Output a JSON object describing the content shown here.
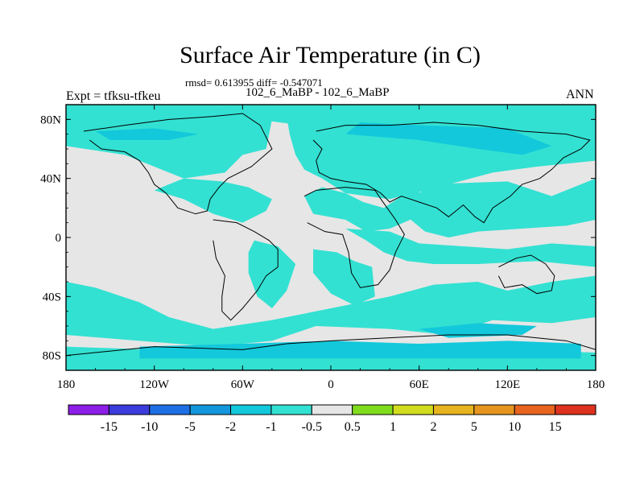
{
  "chart_data": {
    "type": "heatmap",
    "title": "Surface Air Temperature (in C)",
    "stats_line": "rmsd= 0.613955 diff= -0.547071",
    "cases_line": "102_6_MaBP - 102_6_MaBP",
    "left_label": "Expt = tfksu-tfkeu",
    "right_label": "ANN",
    "xlim": [
      -180,
      180
    ],
    "ylim": [
      -90,
      90
    ],
    "x_ticks": [
      {
        "value": -180,
        "label": "180"
      },
      {
        "value": -120,
        "label": "120W"
      },
      {
        "value": -60,
        "label": "60W"
      },
      {
        "value": 0,
        "label": "0"
      },
      {
        "value": 60,
        "label": "60E"
      },
      {
        "value": 120,
        "label": "120E"
      },
      {
        "value": 180,
        "label": "180"
      }
    ],
    "y_ticks": [
      {
        "value": 80,
        "label": "80N"
      },
      {
        "value": 40,
        "label": "40N"
      },
      {
        "value": 0,
        "label": "0"
      },
      {
        "value": -40,
        "label": "40S"
      },
      {
        "value": -80,
        "label": "80S"
      }
    ],
    "colorbar": {
      "colors": [
        "#8c1ee6",
        "#3c3cdc",
        "#1e6ee6",
        "#1496dc",
        "#14c8dc",
        "#32e1d2",
        "#e6e6e6",
        "#82dc1e",
        "#d2dc1e",
        "#e6b41e",
        "#e6961e",
        "#e6641e",
        "#dc321e"
      ],
      "labels": [
        "-15",
        "-10",
        "-5",
        "-2",
        "-1",
        "-0.5",
        "0.5",
        "1",
        "2",
        "5",
        "10",
        "15"
      ]
    },
    "fields": {
      "background_color": "#e6e6e6",
      "level_minus1_color": "#32e1d2",
      "level_minus2_color": "#14c8dc"
    },
    "regions": [
      {
        "level": -1,
        "points": [
          [
            -180,
            90
          ],
          [
            180,
            90
          ],
          [
            180,
            68
          ],
          [
            130,
            70
          ],
          [
            110,
            76
          ],
          [
            40,
            80
          ],
          [
            -20,
            76
          ],
          [
            -80,
            84
          ],
          [
            -120,
            72
          ],
          [
            -160,
            80
          ],
          [
            -180,
            78
          ]
        ]
      },
      {
        "level": -1,
        "points": [
          [
            -180,
            62
          ],
          [
            -140,
            56
          ],
          [
            -120,
            48
          ],
          [
            -100,
            40
          ],
          [
            -72,
            44
          ],
          [
            -60,
            56
          ],
          [
            -44,
            60
          ],
          [
            -40,
            80
          ],
          [
            -60,
            86
          ],
          [
            -120,
            84
          ],
          [
            -180,
            84
          ]
        ]
      },
      {
        "level": -1,
        "points": [
          [
            -30,
            82
          ],
          [
            -10,
            88
          ],
          [
            20,
            86
          ],
          [
            60,
            84
          ],
          [
            100,
            80
          ],
          [
            140,
            84
          ],
          [
            180,
            82
          ],
          [
            180,
            52
          ],
          [
            140,
            48
          ],
          [
            110,
            44
          ],
          [
            80,
            36
          ],
          [
            40,
            26
          ],
          [
            10,
            30
          ],
          [
            -6,
            40
          ],
          [
            -18,
            46
          ],
          [
            -24,
            56
          ],
          [
            -28,
            70
          ]
        ]
      },
      {
        "level": -1,
        "points": [
          [
            -120,
            32
          ],
          [
            -100,
            26
          ],
          [
            -80,
            16
          ],
          [
            -60,
            10
          ],
          [
            -44,
            18
          ],
          [
            -40,
            26
          ],
          [
            -56,
            34
          ],
          [
            -74,
            38
          ],
          [
            -100,
            40
          ]
        ]
      },
      {
        "level": -1,
        "points": [
          [
            -18,
            28
          ],
          [
            -6,
            34
          ],
          [
            10,
            30
          ],
          [
            22,
            24
          ],
          [
            36,
            20
          ],
          [
            48,
            28
          ],
          [
            60,
            32
          ],
          [
            64,
            22
          ],
          [
            54,
            12
          ],
          [
            40,
            6
          ],
          [
            24,
            4
          ],
          [
            10,
            12
          ],
          [
            -12,
            16
          ]
        ]
      },
      {
        "level": -1,
        "points": [
          [
            64,
            36
          ],
          [
            120,
            38
          ],
          [
            150,
            28
          ],
          [
            180,
            40
          ],
          [
            180,
            12
          ],
          [
            160,
            8
          ],
          [
            130,
            6
          ],
          [
            100,
            4
          ],
          [
            80,
            0
          ],
          [
            64,
            4
          ],
          [
            52,
            14
          ]
        ]
      },
      {
        "level": -1,
        "points": [
          [
            10,
            6
          ],
          [
            24,
            -2
          ],
          [
            36,
            -10
          ],
          [
            52,
            -16
          ],
          [
            70,
            -18
          ],
          [
            100,
            -18
          ],
          [
            140,
            -16
          ],
          [
            180,
            -20
          ],
          [
            180,
            -6
          ],
          [
            150,
            -4
          ],
          [
            120,
            -8
          ],
          [
            90,
            -6
          ],
          [
            60,
            -4
          ],
          [
            40,
            4
          ]
        ]
      },
      {
        "level": -1,
        "points": [
          [
            -180,
            -30
          ],
          [
            -160,
            -34
          ],
          [
            -130,
            -44
          ],
          [
            -110,
            -54
          ],
          [
            -80,
            -62
          ],
          [
            -40,
            -56
          ],
          [
            -10,
            -50
          ],
          [
            40,
            -40
          ],
          [
            70,
            -32
          ],
          [
            100,
            -30
          ],
          [
            120,
            -36
          ],
          [
            150,
            -30
          ],
          [
            180,
            -26
          ],
          [
            180,
            -54
          ],
          [
            150,
            -58
          ],
          [
            110,
            -56
          ],
          [
            80,
            -66
          ],
          [
            40,
            -62
          ],
          [
            -10,
            -60
          ],
          [
            -40,
            -70
          ],
          [
            -80,
            -74
          ],
          [
            -130,
            -70
          ],
          [
            -180,
            -66
          ]
        ]
      },
      {
        "level": -1,
        "points": [
          [
            -180,
            -74
          ],
          [
            -120,
            -76
          ],
          [
            -60,
            -80
          ],
          [
            0,
            -76
          ],
          [
            60,
            -80
          ],
          [
            120,
            -76
          ],
          [
            180,
            -78
          ],
          [
            180,
            -90
          ],
          [
            -180,
            -90
          ]
        ]
      },
      {
        "level": -1,
        "points": [
          [
            -52,
            -2
          ],
          [
            -36,
            -6
          ],
          [
            -24,
            -18
          ],
          [
            -30,
            -36
          ],
          [
            -40,
            -48
          ],
          [
            -50,
            -40
          ],
          [
            -56,
            -24
          ],
          [
            -56,
            -10
          ]
        ]
      },
      {
        "level": -1,
        "points": [
          [
            -12,
            -8
          ],
          [
            4,
            -10
          ],
          [
            16,
            -16
          ],
          [
            28,
            -20
          ],
          [
            30,
            -40
          ],
          [
            16,
            -46
          ],
          [
            0,
            -38
          ],
          [
            -12,
            -24
          ]
        ]
      },
      {
        "level": -1,
        "points": [
          [
            -178,
            -48
          ],
          [
            -160,
            -46
          ],
          [
            -150,
            -52
          ],
          [
            -170,
            -56
          ],
          [
            -180,
            -54
          ]
        ]
      },
      {
        "level": -2,
        "points": [
          [
            10,
            70
          ],
          [
            60,
            66
          ],
          [
            100,
            60
          ],
          [
            130,
            56
          ],
          [
            150,
            62
          ],
          [
            120,
            74
          ],
          [
            60,
            76
          ],
          [
            20,
            78
          ]
        ]
      },
      {
        "level": -2,
        "points": [
          [
            -160,
            72
          ],
          [
            -120,
            74
          ],
          [
            -90,
            70
          ],
          [
            -110,
            66
          ],
          [
            -150,
            66
          ]
        ]
      },
      {
        "level": -2,
        "points": [
          [
            -130,
            -74
          ],
          [
            -60,
            -72
          ],
          [
            0,
            -70
          ],
          [
            60,
            -72
          ],
          [
            120,
            -70
          ],
          [
            170,
            -72
          ],
          [
            170,
            -82
          ],
          [
            -130,
            -82
          ]
        ]
      },
      {
        "level": -2,
        "points": [
          [
            60,
            -62
          ],
          [
            100,
            -58
          ],
          [
            140,
            -60
          ],
          [
            130,
            -66
          ],
          [
            80,
            -68
          ]
        ]
      }
    ],
    "land_outlines": [
      [
        [
          -168,
          72
        ],
        [
          -140,
          76
        ],
        [
          -110,
          80
        ],
        [
          -80,
          82
        ],
        [
          -60,
          84
        ],
        [
          -48,
          76
        ],
        [
          -40,
          60
        ],
        [
          -54,
          48
        ],
        [
          -62,
          44
        ],
        [
          -70,
          40
        ],
        [
          -76,
          34
        ],
        [
          -82,
          26
        ],
        [
          -84,
          18
        ],
        [
          -92,
          16
        ],
        [
          -104,
          20
        ],
        [
          -112,
          30
        ],
        [
          -120,
          36
        ],
        [
          -124,
          44
        ],
        [
          -130,
          52
        ],
        [
          -140,
          58
        ],
        [
          -156,
          60
        ],
        [
          -164,
          66
        ]
      ],
      [
        [
          -80,
          12
        ],
        [
          -64,
          10
        ],
        [
          -52,
          4
        ],
        [
          -42,
          -2
        ],
        [
          -36,
          -8
        ],
        [
          -36,
          -20
        ],
        [
          -44,
          -26
        ],
        [
          -50,
          -36
        ],
        [
          -60,
          -48
        ],
        [
          -68,
          -56
        ],
        [
          -74,
          -50
        ],
        [
          -74,
          -40
        ],
        [
          -72,
          -26
        ],
        [
          -78,
          -14
        ],
        [
          -80,
          -2
        ]
      ],
      [
        [
          -10,
          72
        ],
        [
          10,
          76
        ],
        [
          40,
          76
        ],
        [
          70,
          78
        ],
        [
          100,
          76
        ],
        [
          130,
          72
        ],
        [
          160,
          70
        ],
        [
          176,
          66
        ],
        [
          170,
          60
        ],
        [
          158,
          54
        ],
        [
          150,
          46
        ],
        [
          142,
          40
        ],
        [
          130,
          36
        ],
        [
          122,
          28
        ],
        [
          110,
          20
        ],
        [
          104,
          10
        ],
        [
          98,
          14
        ],
        [
          90,
          22
        ],
        [
          80,
          14
        ],
        [
          72,
          20
        ],
        [
          60,
          24
        ],
        [
          48,
          28
        ],
        [
          40,
          24
        ],
        [
          34,
          30
        ],
        [
          24,
          36
        ],
        [
          10,
          38
        ],
        [
          0,
          40
        ],
        [
          -8,
          44
        ],
        [
          -10,
          52
        ],
        [
          -6,
          60
        ],
        [
          -12,
          66
        ]
      ],
      [
        [
          -18,
          28
        ],
        [
          -10,
          32
        ],
        [
          10,
          34
        ],
        [
          30,
          32
        ],
        [
          34,
          26
        ],
        [
          44,
          12
        ],
        [
          50,
          2
        ],
        [
          44,
          -10
        ],
        [
          40,
          -22
        ],
        [
          32,
          -32
        ],
        [
          20,
          -34
        ],
        [
          14,
          -24
        ],
        [
          12,
          -10
        ],
        [
          8,
          2
        ],
        [
          -4,
          4
        ],
        [
          -16,
          10
        ]
      ],
      [
        [
          114,
          -20
        ],
        [
          126,
          -14
        ],
        [
          136,
          -12
        ],
        [
          146,
          -18
        ],
        [
          152,
          -26
        ],
        [
          150,
          -36
        ],
        [
          140,
          -38
        ],
        [
          130,
          -32
        ],
        [
          118,
          -34
        ],
        [
          114,
          -26
        ]
      ],
      [
        [
          -180,
          -80
        ],
        [
          -120,
          -74
        ],
        [
          -60,
          -76
        ],
        [
          -30,
          -72
        ],
        [
          0,
          -70
        ],
        [
          40,
          -68
        ],
        [
          80,
          -66
        ],
        [
          120,
          -66
        ],
        [
          160,
          -70
        ],
        [
          180,
          -76
        ]
      ]
    ]
  }
}
